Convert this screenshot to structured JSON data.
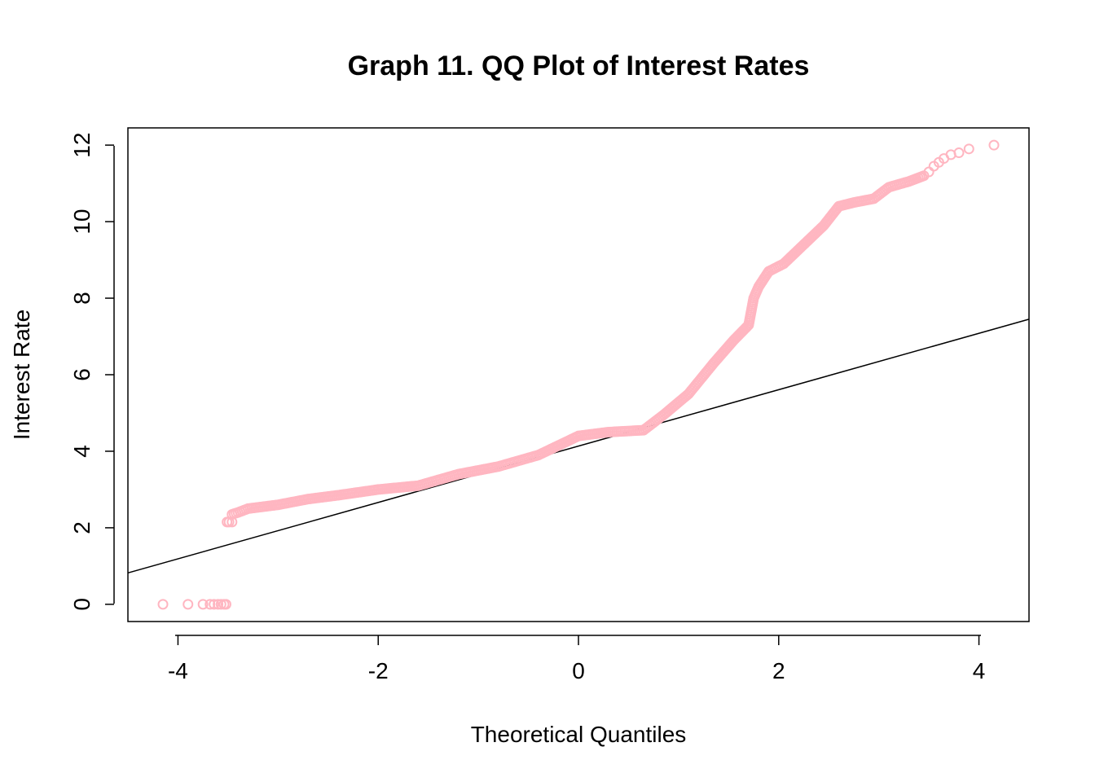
{
  "chart_data": {
    "type": "scatter",
    "title": "Graph 11. QQ Plot of Interest Rates",
    "xlabel": "Theoretical Quantiles",
    "ylabel": "Interest Rate",
    "xlim": [
      -4.5,
      4.5
    ],
    "ylim": [
      -0.45,
      12.45
    ],
    "x_ticks": [
      -4,
      -2,
      0,
      2,
      4
    ],
    "y_ticks": [
      0,
      2,
      4,
      6,
      8,
      10,
      12
    ],
    "grid": false,
    "legend": "none",
    "point_color": "#FFB6C1",
    "line_color": "#000000",
    "reference_line": {
      "x": [
        -4.5,
        4.5
      ],
      "y": [
        0.82,
        7.45
      ]
    },
    "curve": {
      "x": [
        -3.46,
        -3.4,
        -3.3,
        -3.0,
        -2.7,
        -2.4,
        -2.0,
        -1.6,
        -1.2,
        -0.8,
        -0.4,
        0.0,
        0.3,
        0.65,
        0.85,
        1.1,
        1.35,
        1.55,
        1.7,
        1.75,
        1.8,
        1.9,
        2.05,
        2.25,
        2.45,
        2.6,
        2.75,
        2.95,
        3.1,
        3.3,
        3.45
      ],
      "y": [
        2.35,
        2.4,
        2.5,
        2.6,
        2.75,
        2.85,
        3.0,
        3.1,
        3.4,
        3.6,
        3.9,
        4.4,
        4.5,
        4.55,
        4.95,
        5.5,
        6.3,
        6.9,
        7.3,
        8.0,
        8.3,
        8.7,
        8.9,
        9.4,
        9.9,
        10.4,
        10.5,
        10.6,
        10.9,
        11.05,
        11.2
      ]
    },
    "extra_points": {
      "x": [
        -4.15,
        -3.9,
        -3.75,
        -3.68,
        -3.64,
        -3.6,
        -3.57,
        -3.54,
        -3.52,
        -3.51,
        -3.49,
        -3.46,
        3.5,
        3.55,
        3.6,
        3.65,
        3.72,
        3.8,
        3.9,
        4.15
      ],
      "y": [
        0.0,
        0.0,
        0.0,
        0.0,
        0.0,
        0.0,
        0.0,
        0.0,
        0.0,
        2.15,
        2.15,
        2.15,
        11.3,
        11.45,
        11.55,
        11.65,
        11.75,
        11.8,
        11.9,
        12.0
      ]
    }
  }
}
